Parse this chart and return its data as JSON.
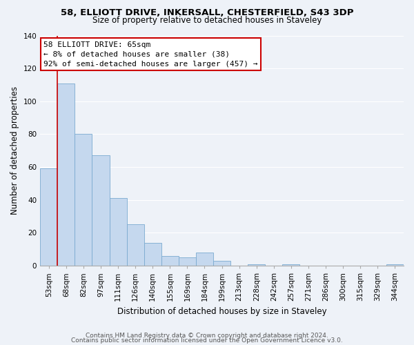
{
  "title1": "58, ELLIOTT DRIVE, INKERSALL, CHESTERFIELD, S43 3DP",
  "title2": "Size of property relative to detached houses in Staveley",
  "xlabel": "Distribution of detached houses by size in Staveley",
  "ylabel": "Number of detached properties",
  "bar_labels": [
    "53sqm",
    "68sqm",
    "82sqm",
    "97sqm",
    "111sqm",
    "126sqm",
    "140sqm",
    "155sqm",
    "169sqm",
    "184sqm",
    "199sqm",
    "213sqm",
    "228sqm",
    "242sqm",
    "257sqm",
    "271sqm",
    "286sqm",
    "300sqm",
    "315sqm",
    "329sqm",
    "344sqm"
  ],
  "bar_heights": [
    59,
    111,
    80,
    67,
    41,
    25,
    14,
    6,
    5,
    8,
    3,
    0,
    1,
    0,
    1,
    0,
    0,
    0,
    0,
    0,
    1
  ],
  "bar_color": "#c5d8ee",
  "bar_edge_color": "#7aaad0",
  "highlight_edge_color": "#cc0000",
  "ylim": [
    0,
    140
  ],
  "yticks": [
    0,
    20,
    40,
    60,
    80,
    100,
    120,
    140
  ],
  "annotation_title": "58 ELLIOTT DRIVE: 65sqm",
  "annotation_line1": "← 8% of detached houses are smaller (38)",
  "annotation_line2": "92% of semi-detached houses are larger (457) →",
  "annotation_box_color": "#ffffff",
  "annotation_box_edge": "#cc0000",
  "footer1": "Contains HM Land Registry data © Crown copyright and database right 2024.",
  "footer2": "Contains public sector information licensed under the Open Government Licence v3.0.",
  "bg_color": "#eef2f8",
  "grid_color": "#ffffff",
  "title1_fontsize": 9.5,
  "title2_fontsize": 8.5,
  "xlabel_fontsize": 8.5,
  "ylabel_fontsize": 8.5,
  "tick_fontsize": 7.5,
  "footer_fontsize": 6.5
}
